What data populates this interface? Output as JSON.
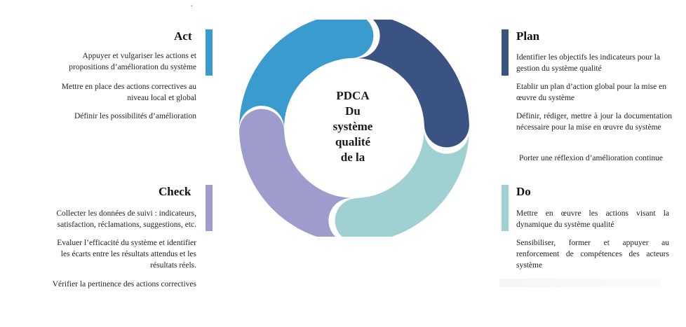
{
  "stray_mark": ".",
  "center": {
    "lines": [
      "PDCA",
      "Du",
      "système",
      "qualité",
      "de la"
    ]
  },
  "colors": {
    "act": "#3a9bcf",
    "plan": "#3a5383",
    "do": "#9fd0d2",
    "check": "#9d9ccd"
  },
  "act": {
    "title": "Act",
    "items": [
      "Appuyer et vulgariser les actions et propositions d’amélioration  du système",
      "Mettre en place des actions correctives  au niveau local  et global",
      "Définir les possibilités  d’amélioration"
    ]
  },
  "plan": {
    "title": "Plan",
    "items": [
      "Identifier les objectifs les indicateurs pour la gestion du système qualité",
      "Etablir un plan d’action global pour la mise en œuvre du système",
      "Définir,  rédiger,  mettre  à  jour  la documentation nécessaire pour la mise en œuvre du système",
      "Porter une réflexion d’amélioration  continue"
    ]
  },
  "check": {
    "title": "Check",
    "items": [
      "Collecter les données de suivi : indicateurs, satisfaction, réclamations,  suggestions, etc.",
      "Evaluer l’efficacité  du système et identifier les écarts  entre les résultats attendus et les résultats réels.",
      "Vérifier la pertinence des actions correctives"
    ]
  },
  "do": {
    "title": "Do",
    "items": [
      "Mettre  en  œuvre  les  actions  visant  la dynamique du système qualité",
      "Sensibiliser,  former  et  appuyer  au renforcement de compétences des acteurs système"
    ]
  }
}
